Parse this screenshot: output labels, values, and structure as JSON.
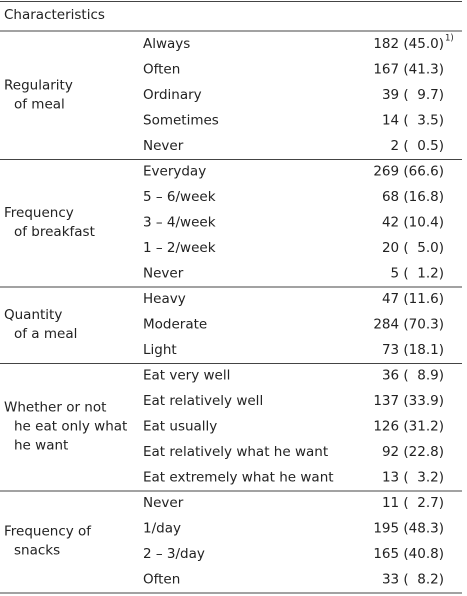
{
  "table": {
    "header": "Characteristics",
    "groups": [
      {
        "label": [
          "Regularity",
          "of meal"
        ],
        "rows": [
          {
            "option": "Always",
            "value": "182 (45.0)",
            "note": "1)"
          },
          {
            "option": "Often",
            "value": "167 (41.3)"
          },
          {
            "option": "Ordinary",
            "value": "39 (  9.7)"
          },
          {
            "option": "Sometimes",
            "value": "14 (  3.5)"
          },
          {
            "option": "Never",
            "value": "2 (  0.5)"
          }
        ]
      },
      {
        "label": [
          "Frequency",
          "of breakfast"
        ],
        "rows": [
          {
            "option": "Everyday",
            "value": "269 (66.6)"
          },
          {
            "option": "5 – 6/week",
            "value": "68 (16.8)"
          },
          {
            "option": "3 – 4/week",
            "value": "42 (10.4)"
          },
          {
            "option": "1 – 2/week",
            "value": "20 (  5.0)"
          },
          {
            "option": "Never",
            "value": "5 (  1.2)"
          }
        ]
      },
      {
        "label": [
          "Quantity",
          "of a meal"
        ],
        "rows": [
          {
            "option": "Heavy",
            "value": "47 (11.6)"
          },
          {
            "option": "Moderate",
            "value": "284 (70.3)"
          },
          {
            "option": "Light",
            "value": "73 (18.1)"
          }
        ]
      },
      {
        "label": [
          "Whether or not",
          "he eat only what",
          "he want"
        ],
        "rows": [
          {
            "option": "Eat very well",
            "value": "36 (  8.9)"
          },
          {
            "option": "Eat relatively well",
            "value": "137 (33.9)"
          },
          {
            "option": "Eat usually",
            "value": "126 (31.2)"
          },
          {
            "option": "Eat relatively what he want",
            "value": "92 (22.8)"
          },
          {
            "option": "Eat extremely what he want",
            "value": "13 (  3.2)"
          }
        ]
      },
      {
        "label": [
          "Frequency of",
          "snacks"
        ],
        "rows": [
          {
            "option": "Never",
            "value": "11 (  2.7)"
          },
          {
            "option": "1/day",
            "value": "195 (48.3)"
          },
          {
            "option": "2 – 3/day",
            "value": "165 (40.8)"
          },
          {
            "option": "Often",
            "value": "33 (  8.2)"
          }
        ]
      }
    ]
  }
}
